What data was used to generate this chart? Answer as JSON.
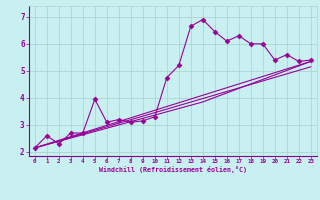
{
  "xlabel": "Windchill (Refroidissement éolien,°C)",
  "bg_color": "#c8f0f0",
  "grid_color": "#aad8d0",
  "line_color": "#990099",
  "spine_color": "#880088",
  "xlim": [
    -0.5,
    23.5
  ],
  "ylim": [
    1.85,
    7.4
  ],
  "xticks": [
    0,
    1,
    2,
    3,
    4,
    5,
    6,
    7,
    8,
    9,
    10,
    11,
    12,
    13,
    14,
    15,
    16,
    17,
    18,
    19,
    20,
    21,
    22,
    23
  ],
  "yticks": [
    2,
    3,
    4,
    5,
    6,
    7
  ],
  "series1_x": [
    0,
    1,
    2,
    3,
    4,
    5,
    6,
    7,
    8,
    9,
    10,
    11,
    12,
    13,
    14,
    15,
    16,
    17,
    18,
    19,
    20,
    21,
    22,
    23
  ],
  "series1_y": [
    2.15,
    2.6,
    2.3,
    2.7,
    2.7,
    3.95,
    3.1,
    3.2,
    3.1,
    3.15,
    3.3,
    4.75,
    5.2,
    6.65,
    6.9,
    6.45,
    6.1,
    6.3,
    6.0,
    6.0,
    5.4,
    5.6,
    5.35,
    5.4
  ],
  "series2_x": [
    0,
    23
  ],
  "series2_y": [
    2.15,
    5.35
  ],
  "series3_x": [
    0,
    23
  ],
  "series3_y": [
    2.15,
    5.15
  ],
  "series4_x": [
    0,
    14,
    23
  ],
  "series4_y": [
    2.15,
    3.85,
    5.35
  ]
}
